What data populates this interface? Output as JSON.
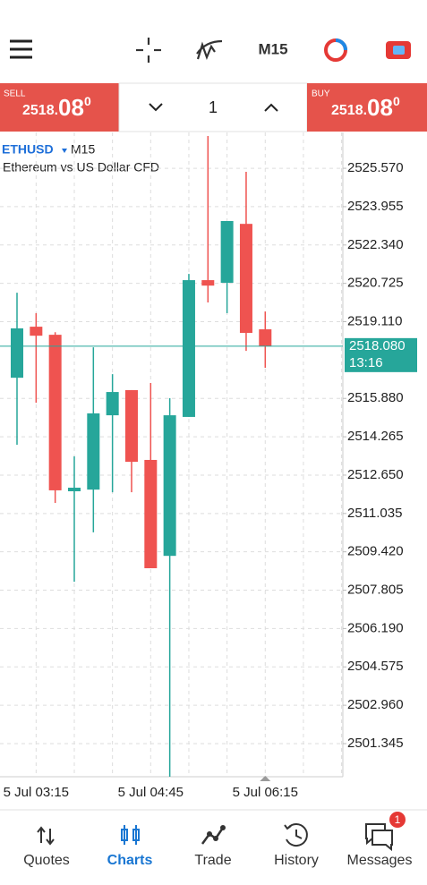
{
  "toolbar": {
    "timeframe": "M15"
  },
  "trade_bar": {
    "sell_label": "SELL",
    "sell_price_main": "2518.",
    "sell_price_big": "08",
    "sell_price_sup": "0",
    "volume": "1",
    "buy_label": "BUY",
    "buy_price_main": "2518.",
    "buy_price_big": "08",
    "buy_price_sup": "0"
  },
  "chart_data": {
    "type": "candlestick",
    "symbol": "ETHUSD",
    "timeframe": "M15",
    "subtitle": "Ethereum vs US Dollar CFD",
    "categories": [
      null,
      "5 Jul 03:15",
      null,
      null,
      null,
      null,
      null,
      "5 Jul 04:45",
      null,
      null,
      null,
      null,
      null,
      "5 Jul 06:15"
    ],
    "open": [
      2516.75,
      2518.9,
      2518.56,
      2511.97,
      2512.04,
      2515.17,
      2516.23,
      2513.29,
      2509.25,
      2515.1,
      2520.86,
      2520.75,
      2523.23,
      2518.79
    ],
    "high": [
      2520.33,
      2519.47,
      2518.67,
      2513.44,
      2518.03,
      2516.9,
      2516.23,
      2516.53,
      2515.89,
      2521.12,
      2526.93,
      2523.35,
      2525.42,
      2519.54
    ],
    "low": [
      2513.93,
      2515.7,
      2511.48,
      2508.16,
      2510.24,
      2511.93,
      2511.93,
      2508.73,
      2499.95,
      2515.1,
      2519.92,
      2519.47,
      2517.88,
      2517.17
    ],
    "close": [
      2518.83,
      2518.52,
      2512.01,
      2512.12,
      2515.25,
      2516.15,
      2513.21,
      2508.73,
      2515.17,
      2520.86,
      2520.63,
      2523.35,
      2518.64,
      2518.08
    ],
    "up_color": "#26a69a",
    "down_color": "#ef5350",
    "ylim": [
      2499.95,
      2527.08
    ],
    "yticks": [
      {
        "value": 2525.57,
        "label": "2525.570"
      },
      2523.955,
      {
        "value": 2522.34,
        "label": "2522.340"
      },
      2520.725,
      {
        "value": 2519.11,
        "label": "2519.110"
      },
      {
        "value": 2515.88,
        "label": "2515.880"
      },
      2514.265,
      {
        "value": 2512.65,
        "label": "2512.650"
      },
      2511.035,
      {
        "value": 2509.42,
        "label": "2509.420"
      },
      2507.805,
      {
        "value": 2506.19,
        "label": "2506.190"
      },
      2504.575,
      {
        "value": 2502.96,
        "label": "2502.960"
      },
      2501.345
    ],
    "grid": true,
    "last_price": {
      "value": 2518.08,
      "label": "2518.080"
    },
    "last_time": "13:16"
  },
  "nav": {
    "items": [
      "Quotes",
      "Charts",
      "Trade",
      "History",
      "Messages"
    ],
    "active": "Charts",
    "badge": "1"
  }
}
